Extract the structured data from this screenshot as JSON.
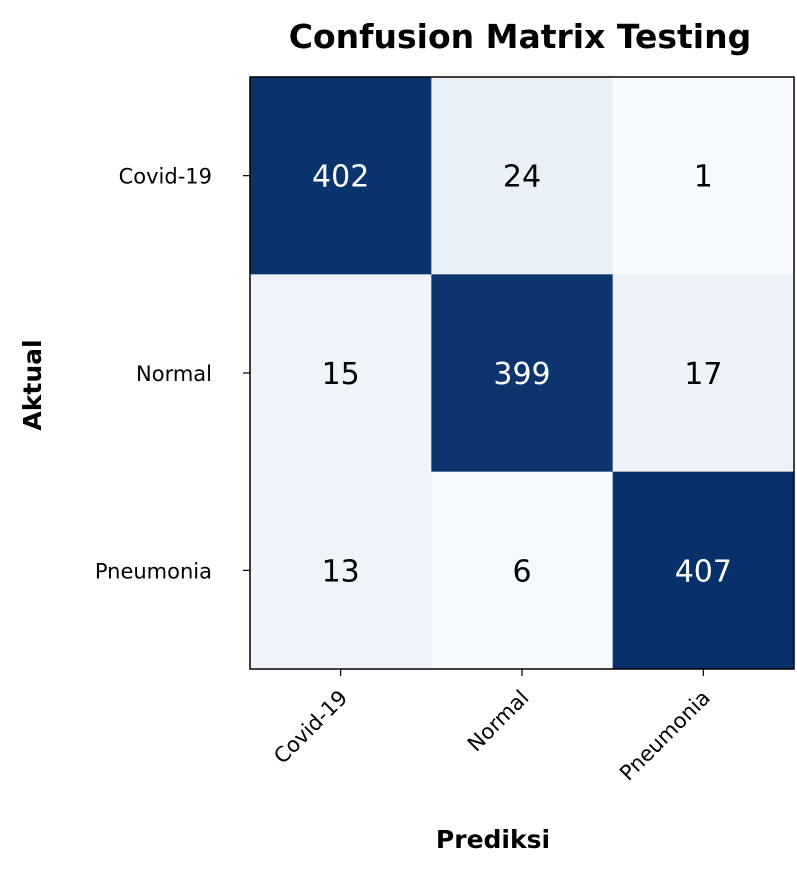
{
  "chart_data": {
    "type": "heatmap",
    "title": "Confusion Matrix Testing",
    "xlabel": "Prediksi",
    "ylabel": "Aktual",
    "x_categories": [
      "Covid-19",
      "Normal",
      "Pneumonia"
    ],
    "y_categories": [
      "Covid-19",
      "Normal",
      "Pneumonia"
    ],
    "values": [
      [
        402,
        24,
        1
      ],
      [
        15,
        399,
        17
      ],
      [
        13,
        6,
        407
      ]
    ],
    "colormap": "Blues",
    "color_low": "#f7fbff",
    "color_high": "#08306b",
    "grid": false
  }
}
